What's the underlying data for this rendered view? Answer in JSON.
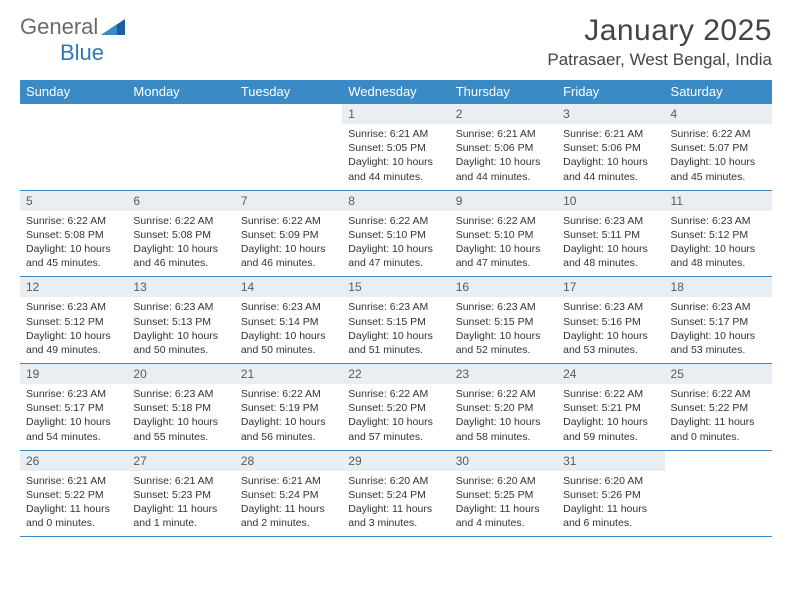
{
  "logo": {
    "text1": "General",
    "text2": "Blue"
  },
  "title": "January 2025",
  "location": "Patrasaer, West Bengal, India",
  "colors": {
    "header_bg": "#3a8ac6",
    "header_text": "#ffffff",
    "daynum_bg": "#e9eef2",
    "daynum_text": "#5a5a5a",
    "body_text": "#333333",
    "logo_gray": "#6b6b6b",
    "logo_blue": "#3079b7",
    "border": "#3a8ac6"
  },
  "typography": {
    "title_fontsize": 30,
    "location_fontsize": 17,
    "dow_fontsize": 13,
    "daynum_fontsize": 12,
    "info_fontsize": 10.5
  },
  "dow": [
    "Sunday",
    "Monday",
    "Tuesday",
    "Wednesday",
    "Thursday",
    "Friday",
    "Saturday"
  ],
  "weeks": [
    [
      null,
      null,
      null,
      {
        "n": "1",
        "sr": "6:21 AM",
        "ss": "5:05 PM",
        "dlh": "10",
        "dlm": "44"
      },
      {
        "n": "2",
        "sr": "6:21 AM",
        "ss": "5:06 PM",
        "dlh": "10",
        "dlm": "44"
      },
      {
        "n": "3",
        "sr": "6:21 AM",
        "ss": "5:06 PM",
        "dlh": "10",
        "dlm": "44"
      },
      {
        "n": "4",
        "sr": "6:22 AM",
        "ss": "5:07 PM",
        "dlh": "10",
        "dlm": "45"
      }
    ],
    [
      {
        "n": "5",
        "sr": "6:22 AM",
        "ss": "5:08 PM",
        "dlh": "10",
        "dlm": "45"
      },
      {
        "n": "6",
        "sr": "6:22 AM",
        "ss": "5:08 PM",
        "dlh": "10",
        "dlm": "46"
      },
      {
        "n": "7",
        "sr": "6:22 AM",
        "ss": "5:09 PM",
        "dlh": "10",
        "dlm": "46"
      },
      {
        "n": "8",
        "sr": "6:22 AM",
        "ss": "5:10 PM",
        "dlh": "10",
        "dlm": "47"
      },
      {
        "n": "9",
        "sr": "6:22 AM",
        "ss": "5:10 PM",
        "dlh": "10",
        "dlm": "47"
      },
      {
        "n": "10",
        "sr": "6:23 AM",
        "ss": "5:11 PM",
        "dlh": "10",
        "dlm": "48"
      },
      {
        "n": "11",
        "sr": "6:23 AM",
        "ss": "5:12 PM",
        "dlh": "10",
        "dlm": "48"
      }
    ],
    [
      {
        "n": "12",
        "sr": "6:23 AM",
        "ss": "5:12 PM",
        "dlh": "10",
        "dlm": "49"
      },
      {
        "n": "13",
        "sr": "6:23 AM",
        "ss": "5:13 PM",
        "dlh": "10",
        "dlm": "50"
      },
      {
        "n": "14",
        "sr": "6:23 AM",
        "ss": "5:14 PM",
        "dlh": "10",
        "dlm": "50"
      },
      {
        "n": "15",
        "sr": "6:23 AM",
        "ss": "5:15 PM",
        "dlh": "10",
        "dlm": "51"
      },
      {
        "n": "16",
        "sr": "6:23 AM",
        "ss": "5:15 PM",
        "dlh": "10",
        "dlm": "52"
      },
      {
        "n": "17",
        "sr": "6:23 AM",
        "ss": "5:16 PM",
        "dlh": "10",
        "dlm": "53"
      },
      {
        "n": "18",
        "sr": "6:23 AM",
        "ss": "5:17 PM",
        "dlh": "10",
        "dlm": "53"
      }
    ],
    [
      {
        "n": "19",
        "sr": "6:23 AM",
        "ss": "5:17 PM",
        "dlh": "10",
        "dlm": "54"
      },
      {
        "n": "20",
        "sr": "6:23 AM",
        "ss": "5:18 PM",
        "dlh": "10",
        "dlm": "55"
      },
      {
        "n": "21",
        "sr": "6:22 AM",
        "ss": "5:19 PM",
        "dlh": "10",
        "dlm": "56"
      },
      {
        "n": "22",
        "sr": "6:22 AM",
        "ss": "5:20 PM",
        "dlh": "10",
        "dlm": "57"
      },
      {
        "n": "23",
        "sr": "6:22 AM",
        "ss": "5:20 PM",
        "dlh": "10",
        "dlm": "58"
      },
      {
        "n": "24",
        "sr": "6:22 AM",
        "ss": "5:21 PM",
        "dlh": "10",
        "dlm": "59"
      },
      {
        "n": "25",
        "sr": "6:22 AM",
        "ss": "5:22 PM",
        "dlh": "11",
        "dlm": "0"
      }
    ],
    [
      {
        "n": "26",
        "sr": "6:21 AM",
        "ss": "5:22 PM",
        "dlh": "11",
        "dlm": "0"
      },
      {
        "n": "27",
        "sr": "6:21 AM",
        "ss": "5:23 PM",
        "dlh": "11",
        "dlm": "1"
      },
      {
        "n": "28",
        "sr": "6:21 AM",
        "ss": "5:24 PM",
        "dlh": "11",
        "dlm": "2"
      },
      {
        "n": "29",
        "sr": "6:20 AM",
        "ss": "5:24 PM",
        "dlh": "11",
        "dlm": "3"
      },
      {
        "n": "30",
        "sr": "6:20 AM",
        "ss": "5:25 PM",
        "dlh": "11",
        "dlm": "4"
      },
      {
        "n": "31",
        "sr": "6:20 AM",
        "ss": "5:26 PM",
        "dlh": "11",
        "dlm": "6"
      },
      null
    ]
  ],
  "labels": {
    "sunrise": "Sunrise:",
    "sunset": "Sunset:",
    "daylight": "Daylight:",
    "hours": "hours",
    "and": "and",
    "minutes": "minutes.",
    "minute": "minute."
  }
}
